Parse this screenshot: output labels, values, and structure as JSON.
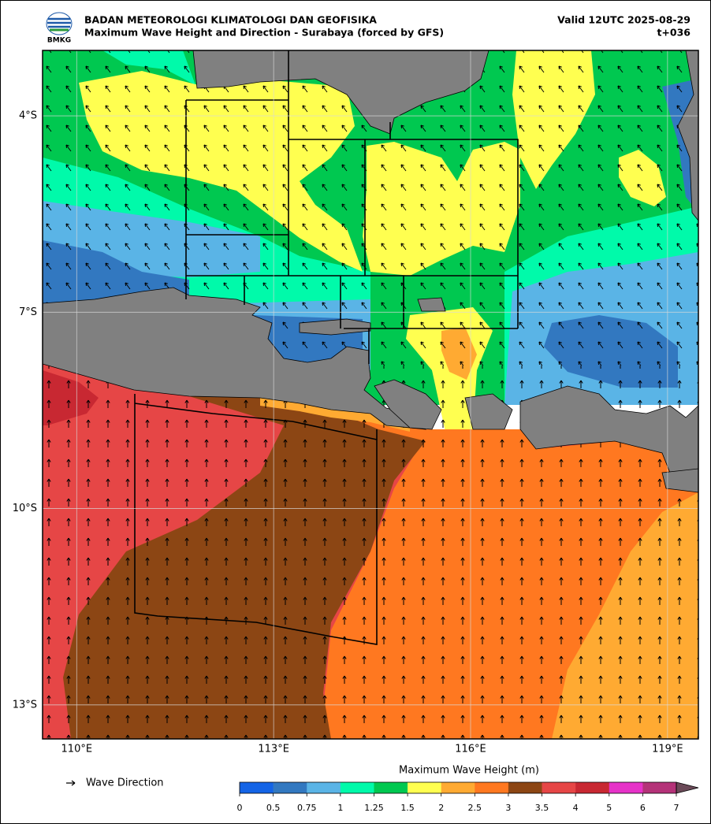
{
  "header": {
    "agency": "BADAN METEOROLOGI KLIMATOLOGI DAN GEOFISIKA",
    "title": "Maximum Wave Height and Direction - Surabaya (forced by GFS)",
    "valid": "Valid 12UTC 2025-08-29",
    "lead": "t+036",
    "logo_text": "BMKG"
  },
  "map": {
    "lon_range": [
      109.48,
      119.47
    ],
    "lat_range": [
      -3.0,
      -13.52
    ],
    "lon_ticks": [
      {
        "value": 110,
        "label": "110°E"
      },
      {
        "value": 113,
        "label": "113°E"
      },
      {
        "value": 116,
        "label": "116°E"
      },
      {
        "value": 119,
        "label": "119°E"
      }
    ],
    "lat_ticks": [
      {
        "value": -4,
        "label": "4°S"
      },
      {
        "value": -7,
        "label": "7°S"
      },
      {
        "value": -10,
        "label": "10°S"
      },
      {
        "value": -13,
        "label": "13°S"
      }
    ],
    "grid": true
  },
  "legend": {
    "wave_direction": "Wave Direction"
  },
  "colorbar": {
    "title": "Maximum Wave Height (m)",
    "ticks": [
      0,
      0.5,
      0.75,
      1,
      1.25,
      1.5,
      2,
      2.5,
      3,
      3.5,
      4,
      5,
      6,
      7
    ],
    "colors": [
      "#1464e6",
      "#3278c0",
      "#5ab4e6",
      "#00faaa",
      "#00c850",
      "#ffff50",
      "#ffaa32",
      "#ff7820",
      "#8c4614",
      "#e64646",
      "#c82832",
      "#e632c8",
      "#b43278"
    ],
    "extend_color": "#6b4a58"
  }
}
